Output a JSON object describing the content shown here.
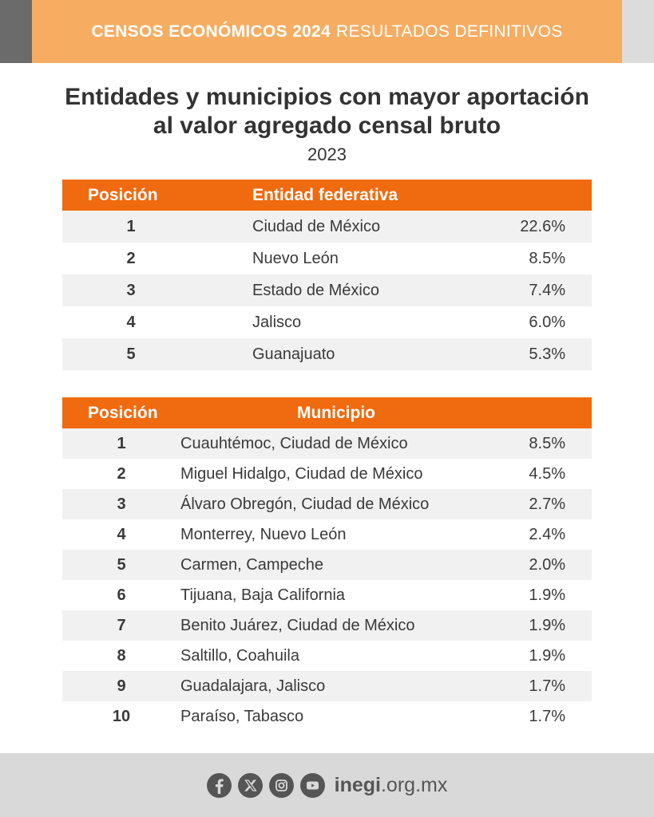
{
  "header": {
    "title_strong": "CENSOS ECONÓMICOS 2024",
    "title_light": "RESULTADOS DEFINITIVOS"
  },
  "title": {
    "line1": "Entidades y municipios con mayor aportación",
    "line2": "al valor agregado censal bruto",
    "year": "2023"
  },
  "entities_table": {
    "headers": [
      "Posición",
      "Entidad federativa"
    ],
    "rows": [
      {
        "position": "1",
        "name": "Ciudad de México",
        "percent": "22.6%"
      },
      {
        "position": "2",
        "name": "Nuevo León",
        "percent": "8.5%"
      },
      {
        "position": "3",
        "name": "Estado de México",
        "percent": "7.4%"
      },
      {
        "position": "4",
        "name": "Jalisco",
        "percent": "6.0%"
      },
      {
        "position": "5",
        "name": "Guanajuato",
        "percent": "5.3%"
      }
    ]
  },
  "municipalities_table": {
    "headers": [
      "Posición",
      "Municipio"
    ],
    "rows": [
      {
        "position": "1",
        "name": "Cuauhtémoc, Ciudad de México",
        "percent": "8.5%"
      },
      {
        "position": "2",
        "name": "Miguel Hidalgo, Ciudad de México",
        "percent": "4.5%"
      },
      {
        "position": "3",
        "name": "Álvaro Obregón, Ciudad de México",
        "percent": "2.7%"
      },
      {
        "position": "4",
        "name": "Monterrey, Nuevo León",
        "percent": "2.4%"
      },
      {
        "position": "5",
        "name": "Carmen, Campeche",
        "percent": "2.0%"
      },
      {
        "position": "6",
        "name": "Tijuana, Baja California",
        "percent": "1.9%"
      },
      {
        "position": "7",
        "name": "Benito Juárez, Ciudad de México",
        "percent": "1.9%"
      },
      {
        "position": "8",
        "name": "Saltillo, Coahuila",
        "percent": "1.9%"
      },
      {
        "position": "9",
        "name": "Guadalajara, Jalisco",
        "percent": "1.7%"
      },
      {
        "position": "10",
        "name": "Paraíso, Tabasco",
        "percent": "1.7%"
      }
    ]
  },
  "footer": {
    "social_icons": [
      "facebook-icon",
      "x-icon",
      "instagram-icon",
      "youtube-icon"
    ],
    "site_bold": "inegi",
    "site_rest": ".org.mx"
  },
  "colors": {
    "accent_orange": "#f06a0f",
    "banner_orange": "#f6ad62",
    "row_stripe": "#f1f1f2",
    "footer_gray": "#d9d9d9"
  }
}
